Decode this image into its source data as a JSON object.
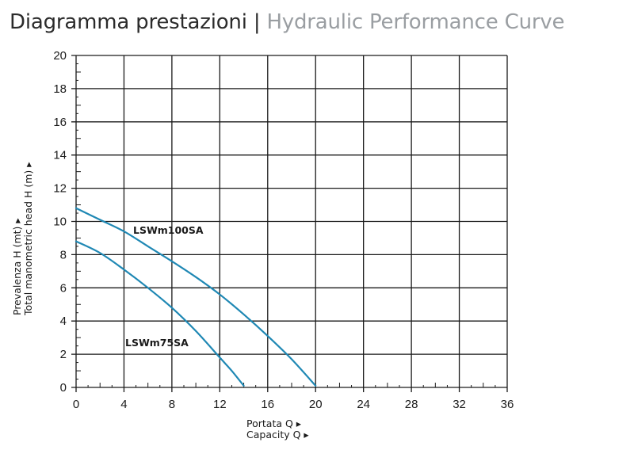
{
  "header": {
    "title_it": "Diagramma prestazioni",
    "separator": "|",
    "title_en": "Hydraulic Performance Curve"
  },
  "axes": {
    "x_label_it": "Portata Q ▸",
    "x_label_en": "Capacity Q ▸",
    "y_label_it": "Prevalenza H (mt) ▸",
    "y_label_en": "Total manometric head H (m) ▸"
  },
  "colors": {
    "curve": "#1f88b4",
    "grid": "#1a1a1a"
  },
  "chart_data": {
    "type": "line",
    "title": "Diagramma prestazioni | Hydraulic Performance Curve",
    "xlabel": "Portata Q / Capacity Q",
    "ylabel": "Prevalenza H (mt) / Total manometric head H (m)",
    "xlim": [
      0,
      36
    ],
    "ylim": [
      0,
      20
    ],
    "x_ticks": [
      0,
      4,
      8,
      12,
      16,
      20,
      24,
      28,
      32,
      36
    ],
    "y_ticks": [
      0,
      2,
      4,
      6,
      8,
      10,
      12,
      14,
      16,
      18,
      20
    ],
    "grid": true,
    "legend": "inline labels",
    "series": [
      {
        "name": "LSWm100SA",
        "x": [
          0,
          2,
          4,
          6,
          8,
          10,
          12,
          14,
          16,
          18,
          20
        ],
        "y": [
          10.8,
          10.1,
          9.4,
          8.5,
          7.6,
          6.65,
          5.6,
          4.4,
          3.1,
          1.7,
          0.1
        ]
      },
      {
        "name": "LSWm75SA",
        "x": [
          0,
          2,
          4,
          6,
          8,
          10,
          12,
          13,
          14
        ],
        "y": [
          8.8,
          8.1,
          7.1,
          6.0,
          4.8,
          3.4,
          1.8,
          1.0,
          0.1
        ]
      }
    ]
  }
}
